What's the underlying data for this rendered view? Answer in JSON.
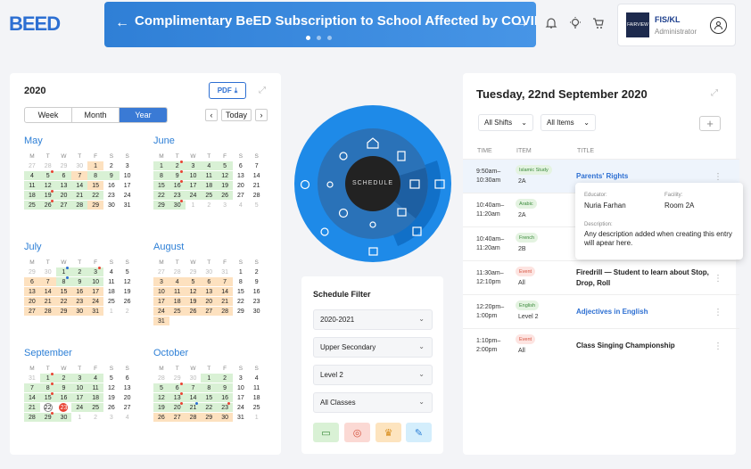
{
  "logo": "BEED",
  "banner": {
    "title": "Complimentary BeED Subscription to School Affected by COVID-19",
    "left": "←",
    "right": "→"
  },
  "header": {
    "school_logo": "FAIRVIEW",
    "user_name": "FIS/KL",
    "user_role": "Administrator"
  },
  "calendar": {
    "year": "2020",
    "pdf_label": "PDF",
    "views": [
      "Week",
      "Month",
      "Year"
    ],
    "active_view": "Year",
    "today_label": "Today",
    "prev": "‹",
    "next": "›",
    "weekdays": [
      "M",
      "T",
      "W",
      "T",
      "F",
      "S",
      "S"
    ],
    "months": [
      {
        "name": "May",
        "cells": [
          [
            "27",
            "g"
          ],
          [
            "28",
            "g"
          ],
          [
            "29",
            "g"
          ],
          [
            "30",
            "g"
          ],
          [
            "1",
            "o"
          ],
          [
            "2",
            "d"
          ],
          [
            "3",
            "d"
          ],
          [
            "4",
            "gr"
          ],
          [
            "5",
            "gr",
            "r"
          ],
          [
            "6",
            "gr"
          ],
          [
            "7",
            "o"
          ],
          [
            "8",
            "gr"
          ],
          [
            "9",
            "gr"
          ],
          [
            "10",
            "d"
          ],
          [
            "11",
            "gr"
          ],
          [
            "12",
            "gr"
          ],
          [
            "13",
            "gr"
          ],
          [
            "14",
            "gr"
          ],
          [
            "15",
            "o"
          ],
          [
            "16",
            "d"
          ],
          [
            "17",
            "d"
          ],
          [
            "18",
            "gr"
          ],
          [
            "19",
            "gr",
            "r"
          ],
          [
            "20",
            "gr"
          ],
          [
            "21",
            "gr"
          ],
          [
            "22",
            "gr"
          ],
          [
            "23",
            "d"
          ],
          [
            "24",
            "d"
          ],
          [
            "25",
            "gr"
          ],
          [
            "26",
            "gr",
            "r"
          ],
          [
            "27",
            "gr"
          ],
          [
            "28",
            "gr"
          ],
          [
            "29",
            "o"
          ],
          [
            "30",
            "d"
          ],
          [
            "31",
            "d"
          ]
        ]
      },
      {
        "name": "June",
        "cells": [
          [
            "1",
            "gr"
          ],
          [
            "2",
            "gr",
            "r"
          ],
          [
            "3",
            "gr"
          ],
          [
            "4",
            "gr"
          ],
          [
            "5",
            "gr"
          ],
          [
            "6",
            "d"
          ],
          [
            "7",
            "d"
          ],
          [
            "8",
            "gr"
          ],
          [
            "9",
            "gr",
            "r"
          ],
          [
            "10",
            "gr"
          ],
          [
            "11",
            "gr"
          ],
          [
            "12",
            "gr"
          ],
          [
            "13",
            "d"
          ],
          [
            "14",
            "d"
          ],
          [
            "15",
            "gr"
          ],
          [
            "16",
            "gr",
            "r"
          ],
          [
            "17",
            "gr"
          ],
          [
            "18",
            "gr"
          ],
          [
            "19",
            "gr"
          ],
          [
            "20",
            "d"
          ],
          [
            "21",
            "d"
          ],
          [
            "22",
            "gr"
          ],
          [
            "23",
            "gr"
          ],
          [
            "24",
            "gr"
          ],
          [
            "25",
            "gr"
          ],
          [
            "26",
            "gr"
          ],
          [
            "27",
            "d"
          ],
          [
            "28",
            "d"
          ],
          [
            "29",
            "gr"
          ],
          [
            "30",
            "gr",
            "r"
          ],
          [
            "1",
            "g"
          ],
          [
            "2",
            "g"
          ],
          [
            "3",
            "g"
          ],
          [
            "4",
            "g"
          ],
          [
            "5",
            "g"
          ]
        ]
      },
      {
        "name": "July",
        "cells": [
          [
            "29",
            "g"
          ],
          [
            "30",
            "g"
          ],
          [
            "1",
            "gr",
            "b"
          ],
          [
            "2",
            "gr"
          ],
          [
            "3",
            "gr",
            "r"
          ],
          [
            "4",
            "d"
          ],
          [
            "5",
            "d"
          ],
          [
            "6",
            "o"
          ],
          [
            "7",
            "o"
          ],
          [
            "8",
            "gr",
            "b"
          ],
          [
            "9",
            "gr"
          ],
          [
            "10",
            "gr"
          ],
          [
            "11",
            "d"
          ],
          [
            "12",
            "d"
          ],
          [
            "13",
            "o"
          ],
          [
            "14",
            "o"
          ],
          [
            "15",
            "o"
          ],
          [
            "16",
            "o"
          ],
          [
            "17",
            "o"
          ],
          [
            "18",
            "d"
          ],
          [
            "19",
            "d"
          ],
          [
            "20",
            "o"
          ],
          [
            "21",
            "o"
          ],
          [
            "22",
            "o"
          ],
          [
            "23",
            "o"
          ],
          [
            "24",
            "o"
          ],
          [
            "25",
            "d"
          ],
          [
            "26",
            "d"
          ],
          [
            "27",
            "o"
          ],
          [
            "28",
            "o"
          ],
          [
            "29",
            "o"
          ],
          [
            "30",
            "o"
          ],
          [
            "31",
            "o"
          ],
          [
            "1",
            "g"
          ],
          [
            "2",
            "g"
          ]
        ]
      },
      {
        "name": "August",
        "cells": [
          [
            "27",
            "g"
          ],
          [
            "28",
            "g"
          ],
          [
            "29",
            "g"
          ],
          [
            "30",
            "g"
          ],
          [
            "31",
            "g"
          ],
          [
            "1",
            "d"
          ],
          [
            "2",
            "d"
          ],
          [
            "3",
            "o"
          ],
          [
            "4",
            "o"
          ],
          [
            "5",
            "o"
          ],
          [
            "6",
            "o"
          ],
          [
            "7",
            "o"
          ],
          [
            "8",
            "d"
          ],
          [
            "9",
            "d"
          ],
          [
            "10",
            "o"
          ],
          [
            "11",
            "o"
          ],
          [
            "12",
            "o"
          ],
          [
            "13",
            "o"
          ],
          [
            "14",
            "o"
          ],
          [
            "15",
            "d"
          ],
          [
            "16",
            "d"
          ],
          [
            "17",
            "o"
          ],
          [
            "18",
            "o"
          ],
          [
            "19",
            "o"
          ],
          [
            "20",
            "o"
          ],
          [
            "21",
            "o"
          ],
          [
            "22",
            "d"
          ],
          [
            "23",
            "d"
          ],
          [
            "24",
            "o"
          ],
          [
            "25",
            "o"
          ],
          [
            "26",
            "o"
          ],
          [
            "27",
            "o"
          ],
          [
            "28",
            "o"
          ],
          [
            "29",
            "d"
          ],
          [
            "30",
            "d"
          ],
          [
            "31",
            "o"
          ]
        ]
      },
      {
        "name": "September",
        "cells": [
          [
            "31",
            "g"
          ],
          [
            "1",
            "gr",
            "r"
          ],
          [
            "2",
            "gr"
          ],
          [
            "3",
            "gr"
          ],
          [
            "4",
            "gr"
          ],
          [
            "5",
            "d"
          ],
          [
            "6",
            "d"
          ],
          [
            "7",
            "gr"
          ],
          [
            "8",
            "gr",
            "r"
          ],
          [
            "9",
            "gr"
          ],
          [
            "10",
            "gr"
          ],
          [
            "11",
            "gr"
          ],
          [
            "12",
            "d"
          ],
          [
            "13",
            "d"
          ],
          [
            "14",
            "gr"
          ],
          [
            "15",
            "gr",
            "r"
          ],
          [
            "16",
            "gr"
          ],
          [
            "17",
            "gr"
          ],
          [
            "18",
            "gr"
          ],
          [
            "19",
            "d"
          ],
          [
            "20",
            "d"
          ],
          [
            "21",
            "gr"
          ],
          [
            "22",
            "ring"
          ],
          [
            "23",
            "today"
          ],
          [
            "24",
            "gr"
          ],
          [
            "25",
            "gr"
          ],
          [
            "26",
            "d"
          ],
          [
            "27",
            "d"
          ],
          [
            "28",
            "gr"
          ],
          [
            "29",
            "gr",
            "r"
          ],
          [
            "30",
            "gr"
          ],
          [
            "1",
            "g"
          ],
          [
            "2",
            "g"
          ],
          [
            "3",
            "g"
          ],
          [
            "4",
            "g"
          ]
        ]
      },
      {
        "name": "October",
        "cells": [
          [
            "28",
            "g"
          ],
          [
            "29",
            "g"
          ],
          [
            "30",
            "g"
          ],
          [
            "1",
            "gr"
          ],
          [
            "2",
            "gr"
          ],
          [
            "3",
            "d"
          ],
          [
            "4",
            "d"
          ],
          [
            "5",
            "gr"
          ],
          [
            "6",
            "gr",
            "r"
          ],
          [
            "7",
            "gr"
          ],
          [
            "8",
            "gr"
          ],
          [
            "9",
            "gr"
          ],
          [
            "10",
            "d"
          ],
          [
            "11",
            "d"
          ],
          [
            "12",
            "gr"
          ],
          [
            "13",
            "gr",
            "r"
          ],
          [
            "14",
            "gr"
          ],
          [
            "15",
            "gr"
          ],
          [
            "16",
            "gr"
          ],
          [
            "17",
            "d"
          ],
          [
            "18",
            "d"
          ],
          [
            "19",
            "gr"
          ],
          [
            "20",
            "gr",
            "r"
          ],
          [
            "21",
            "gr",
            "b"
          ],
          [
            "22",
            "gr"
          ],
          [
            "23",
            "gr",
            "r"
          ],
          [
            "24",
            "d"
          ],
          [
            "25",
            "d"
          ],
          [
            "26",
            "o"
          ],
          [
            "27",
            "o"
          ],
          [
            "28",
            "o"
          ],
          [
            "29",
            "o"
          ],
          [
            "30",
            "o"
          ],
          [
            "31",
            "d"
          ],
          [
            "1",
            "g"
          ]
        ]
      }
    ]
  },
  "wheel": {
    "center_label": "SCHEDULE"
  },
  "filter": {
    "title": "Schedule Filter",
    "selects": [
      "2020-2021",
      "Upper Secondary",
      "Level 2",
      "All Classes"
    ]
  },
  "schedule": {
    "date": "Tuesday, 22nd September 2020",
    "shift": "All Shifts",
    "items": "All Items",
    "headers": [
      "TIME",
      "ITEM",
      "TITLE"
    ],
    "rows": [
      {
        "time1": "9:50am–",
        "time2": "10:30am",
        "tag": "Islamic Study",
        "level": "2A",
        "title": "Parents' Rights",
        "color": "#2d6fd2",
        "tagbg": "#e4f3e1",
        "tagfg": "#3a8a3a"
      },
      {
        "time1": "10:40am–",
        "time2": "11:20am",
        "tag": "Arabic",
        "level": "2A",
        "title": "",
        "color": "#222",
        "tagbg": "#e4f3e1",
        "tagfg": "#3a8a3a"
      },
      {
        "time1": "10:40am–",
        "time2": "11:20am",
        "tag": "French",
        "level": "2B",
        "title": "",
        "color": "#222",
        "tagbg": "#e4f3e1",
        "tagfg": "#3a8a3a"
      },
      {
        "time1": "11:30am–",
        "time2": "12:10pm",
        "tag": "Event",
        "level": "All",
        "title": "Firedrill — Student to learn about Stop, Drop, Roll",
        "color": "#222",
        "tagbg": "#fde4e1",
        "tagfg": "#d6523f"
      },
      {
        "time1": "12:20pm–",
        "time2": "1:00pm",
        "tag": "English",
        "level": "Level 2",
        "title": "Adjectives in English",
        "color": "#2d6fd2",
        "tagbg": "#e4f3e1",
        "tagfg": "#3a8a3a"
      },
      {
        "time1": "1:10pm–",
        "time2": "2:00pm",
        "tag": "Event",
        "level": "All",
        "title": "Class Singing Championship",
        "color": "#222",
        "tagbg": "#fde4e1",
        "tagfg": "#d6523f"
      }
    ],
    "popup": {
      "educator_label": "Educator:",
      "educator": "Nuria Farhan",
      "facility_label": "Facility:",
      "facility": "Room 2A",
      "desc_label": "Description:",
      "desc": "Any description added when creating this entry will apear here."
    }
  }
}
